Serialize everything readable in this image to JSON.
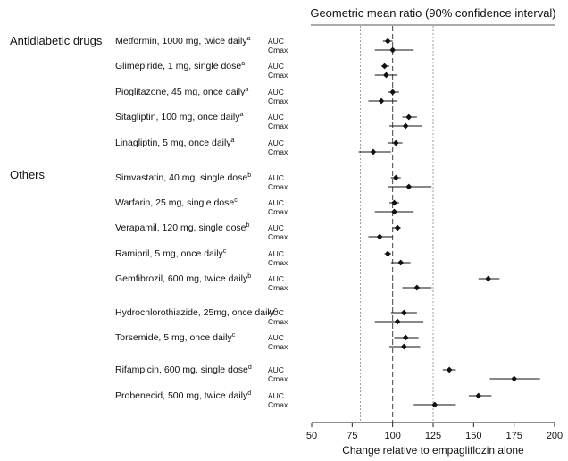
{
  "chart_data": {
    "type": "forest",
    "title": "Geometric mean ratio (90% confidence interval)",
    "xlabel": "Change relative to empagliflozin alone",
    "xlim": [
      50,
      200
    ],
    "xticks": [
      "50",
      "75",
      "100",
      "125",
      "150",
      "175",
      "200"
    ],
    "reference_lines": [
      80,
      100,
      125
    ],
    "groups": [
      {
        "name": "Antidiabetic drugs",
        "drugs": [
          {
            "label": "Metformin, 1000 mg, twice daily",
            "sup": "a",
            "rows": [
              {
                "metric": "AUC",
                "estimate": 97,
                "lower": 94,
                "upper": 100
              },
              {
                "metric": "Cmax",
                "estimate": 100,
                "lower": 89,
                "upper": 113
              }
            ]
          },
          {
            "label": "Glimepiride, 1 mg, single dose",
            "sup": "a",
            "rows": [
              {
                "metric": "AUC",
                "estimate": 95,
                "lower": 93,
                "upper": 98
              },
              {
                "metric": "Cmax",
                "estimate": 96,
                "lower": 89,
                "upper": 103
              }
            ]
          },
          {
            "label": "Pioglitazone, 45 mg, once daily",
            "sup": "a",
            "rows": [
              {
                "metric": "AUC",
                "estimate": 100,
                "lower": 97,
                "upper": 104
              },
              {
                "metric": "Cmax",
                "estimate": 93,
                "lower": 85,
                "upper": 103
              }
            ]
          },
          {
            "label": "Sitagliptin, 100 mg, once daily",
            "sup": "a",
            "rows": [
              {
                "metric": "AUC",
                "estimate": 110,
                "lower": 106,
                "upper": 115
              },
              {
                "metric": "Cmax",
                "estimate": 108,
                "lower": 98,
                "upper": 118
              }
            ]
          },
          {
            "label": "Linagliptin, 5 mg, once daily",
            "sup": "a",
            "rows": [
              {
                "metric": "AUC",
                "estimate": 102,
                "lower": 97,
                "upper": 106
              },
              {
                "metric": "Cmax",
                "estimate": 88,
                "lower": 79,
                "upper": 99
              }
            ]
          }
        ]
      },
      {
        "name": "Others",
        "drugs": [
          {
            "label": "Simvastatin, 40 mg, single dose",
            "sup": "b",
            "rows": [
              {
                "metric": "AUC",
                "estimate": 102,
                "lower": 99,
                "upper": 105
              },
              {
                "metric": "Cmax",
                "estimate": 110,
                "lower": 97,
                "upper": 124
              }
            ]
          },
          {
            "label": "Warfarin, 25 mg, single dose",
            "sup": "c",
            "rows": [
              {
                "metric": "AUC",
                "estimate": 101,
                "lower": 98,
                "upper": 104
              },
              {
                "metric": "Cmax",
                "estimate": 101,
                "lower": 89,
                "upper": 113
              }
            ]
          },
          {
            "label": "Verapamil, 120 mg, single dose",
            "sup": "b",
            "rows": [
              {
                "metric": "AUC",
                "estimate": 103,
                "lower": 100,
                "upper": 105
              },
              {
                "metric": "Cmax",
                "estimate": 92,
                "lower": 85,
                "upper": 100
              }
            ]
          },
          {
            "label": "Ramipril, 5 mg, once daily",
            "sup": "c",
            "rows": [
              {
                "metric": "AUC",
                "estimate": 97,
                "lower": 95,
                "upper": 99
              },
              {
                "metric": "Cmax",
                "estimate": 105,
                "lower": 99,
                "upper": 111
              }
            ]
          },
          {
            "label": "Gemfibrozil, 600 mg, twice daily",
            "sup": "b",
            "rows": [
              {
                "metric": "AUC",
                "estimate": 159,
                "lower": 153,
                "upper": 166
              },
              {
                "metric": "Cmax",
                "estimate": 115,
                "lower": 106,
                "upper": 124
              }
            ]
          },
          {
            "label": "Hydrochlorothiazide, 25mg, once daily",
            "sup": "c",
            "rows": [
              {
                "metric": "AUC",
                "estimate": 107,
                "lower": 99,
                "upper": 115
              },
              {
                "metric": "Cmax",
                "estimate": 103,
                "lower": 89,
                "upper": 119
              }
            ]
          },
          {
            "label": "Torsemide, 5 mg, once daily",
            "sup": "c",
            "rows": [
              {
                "metric": "AUC",
                "estimate": 108,
                "lower": 101,
                "upper": 116
              },
              {
                "metric": "Cmax",
                "estimate": 107,
                "lower": 98,
                "upper": 117
              }
            ]
          },
          {
            "label": "Rifampicin, 600 mg, single dose",
            "sup": "d",
            "rows": [
              {
                "metric": "AUC",
                "estimate": 135,
                "lower": 131,
                "upper": 139
              },
              {
                "metric": "Cmax",
                "estimate": 175,
                "lower": 160,
                "upper": 191
              }
            ]
          },
          {
            "label": "Probenecid, 500 mg, twice daily",
            "sup": "d",
            "rows": [
              {
                "metric": "AUC",
                "estimate": 153,
                "lower": 147,
                "upper": 161
              },
              {
                "metric": "Cmax",
                "estimate": 126,
                "lower": 113,
                "upper": 139
              }
            ]
          }
        ]
      }
    ]
  }
}
